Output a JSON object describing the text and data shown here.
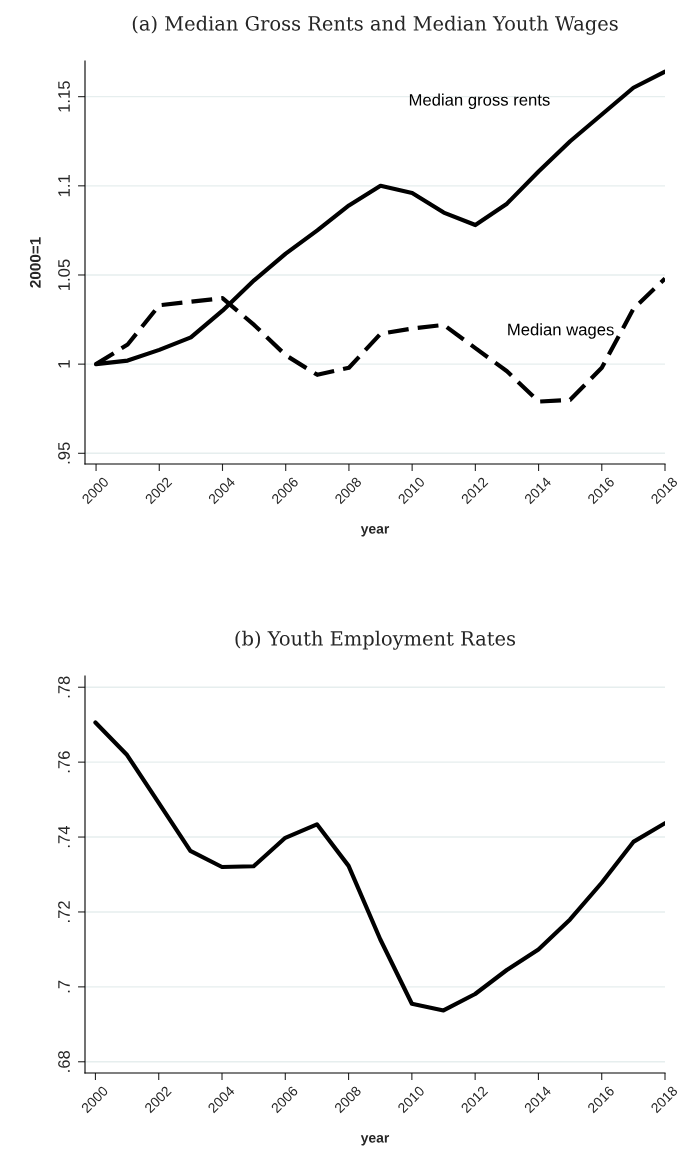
{
  "chart_data": [
    {
      "type": "line",
      "title": "(a) Median Gross Rents and Median Youth Wages",
      "xlabel": "year",
      "ylabel": "2000=1",
      "x": [
        2000,
        2001,
        2002,
        2003,
        2004,
        2005,
        2006,
        2007,
        2008,
        2009,
        2010,
        2011,
        2012,
        2013,
        2014,
        2015,
        2016,
        2017,
        2018
      ],
      "series": [
        {
          "name": "Median gross rents",
          "color": "#000000",
          "line_style": "solid",
          "values": [
            1.0,
            1.002,
            1.008,
            1.015,
            1.03,
            1.047,
            1.062,
            1.075,
            1.089,
            1.1,
            1.096,
            1.085,
            1.078,
            1.09,
            1.108,
            1.125,
            1.14,
            1.155,
            1.164
          ]
        },
        {
          "name": "Median wages",
          "color": "#000000",
          "line_style": "dashed",
          "values": [
            1.0,
            1.011,
            1.033,
            1.035,
            1.037,
            1.022,
            1.005,
            0.994,
            0.998,
            1.017,
            1.02,
            1.022,
            1.009,
            0.996,
            0.979,
            0.98,
            0.998,
            1.031,
            1.048
          ]
        }
      ],
      "xlim": [
        1999.65,
        2018
      ],
      "ylim": [
        0.944,
        1.17
      ],
      "xticks": [
        2000,
        2002,
        2004,
        2006,
        2008,
        2010,
        2012,
        2014,
        2016,
        2018
      ],
      "yticks": [
        {
          "value": 0.95,
          "label": ".95"
        },
        {
          "value": 1.0,
          "label": "1"
        },
        {
          "value": 1.05,
          "label": "1.05"
        },
        {
          "value": 1.1,
          "label": "1.1"
        },
        {
          "value": 1.15,
          "label": "1.15"
        }
      ],
      "grid": "y",
      "legend": false,
      "marker": "none"
    },
    {
      "type": "line",
      "title": "(b) Youth Employment Rates",
      "xlabel": "year",
      "x": [
        2000,
        2001,
        2002,
        2003,
        2004,
        2005,
        2006,
        2007,
        2008,
        2009,
        2010,
        2011,
        2012,
        2013,
        2014,
        2015,
        2016,
        2017,
        2018
      ],
      "series": [
        {
          "color": "#000000",
          "line_style": "solid",
          "values": [
            0.7706,
            0.7619,
            0.7491,
            0.7363,
            0.732,
            0.7322,
            0.7398,
            0.7434,
            0.7323,
            0.7127,
            0.6955,
            0.6937,
            0.6981,
            0.7045,
            0.71,
            0.718,
            0.7278,
            0.7387,
            0.7437
          ]
        }
      ],
      "xlim": [
        1999.67,
        2018
      ],
      "ylim": [
        0.677,
        0.783
      ],
      "xticks": [
        2000,
        2002,
        2004,
        2006,
        2008,
        2010,
        2012,
        2014,
        2016,
        2018
      ],
      "yticks": [
        {
          "value": 0.68,
          "label": ".68"
        },
        {
          "value": 0.7,
          "label": ".7"
        },
        {
          "value": 0.72,
          "label": ".72"
        },
        {
          "value": 0.74,
          "label": ".74"
        },
        {
          "value": 0.76,
          "label": ".76"
        },
        {
          "value": 0.78,
          "label": ".78"
        }
      ],
      "grid": "y",
      "legend": false,
      "marker": "none"
    }
  ]
}
